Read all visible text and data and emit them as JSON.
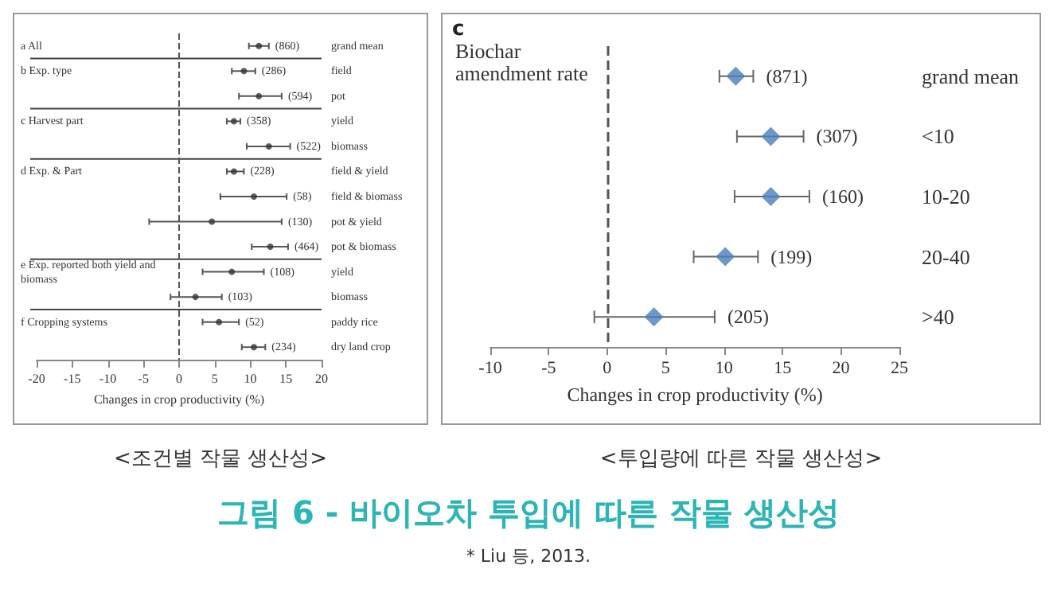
{
  "chart_data": [
    {
      "type": "scatter",
      "orientation": "horizontal",
      "xlabel": "Changes in crop productivity (%)",
      "marker": "circle",
      "color": "#333333",
      "categories": [
        "grand mean",
        "field",
        "pot",
        "yield",
        "biomass",
        "field & yield",
        "field & biomass",
        "pot & yield",
        "pot & biomass",
        "yield",
        "biomass",
        "paddy rice",
        "dry land crop"
      ],
      "values": [
        11.2,
        9.1,
        11.2,
        7.7,
        12.6,
        7.7,
        10.5,
        4.6,
        12.8,
        7.4,
        2.3,
        5.6,
        10.5
      ],
      "errors": [
        [
          9.8,
          12.6
        ],
        [
          7.4,
          10.7
        ],
        [
          8.4,
          14.4
        ],
        [
          6.7,
          8.6
        ],
        [
          9.5,
          15.6
        ],
        [
          6.7,
          9.1
        ],
        [
          5.8,
          15.1
        ],
        [
          -4.2,
          14.4
        ],
        [
          10.2,
          15.3
        ],
        [
          3.3,
          11.9
        ],
        [
          -1.2,
          6.0
        ],
        [
          3.3,
          8.4
        ],
        [
          8.8,
          12.1
        ]
      ],
      "xlim": [
        -20,
        20
      ],
      "xticks": [
        -20,
        -15,
        -10,
        -5,
        0,
        5,
        10,
        15,
        20
      ],
      "ref_lines": [
        {
          "axis": "x",
          "value": 0,
          "line_style": "dashed"
        }
      ],
      "y2_categories": [
        "a All",
        "b Exp. type",
        null,
        "c Harvest part",
        null,
        "d Exp. & Part",
        null,
        null,
        null,
        "e Exp. reported both yield and biomass",
        null,
        "f Cropping systems",
        null
      ],
      "annotations": [
        "<조건별 작물 생산성>",
        "(860)",
        "(286)",
        "(594)",
        "(358)",
        "(522)",
        "(228)",
        "(58)",
        "(130)",
        "(464)",
        "(108)",
        "(103)",
        "(52)",
        "(234)"
      ]
    },
    {
      "type": "scatter",
      "orientation": "horizontal",
      "title": "Biochar amendment rate",
      "xlabel": "Changes in crop productivity (%)",
      "marker": "diamond",
      "color": "#4a7ebb",
      "categories": [
        "grand mean",
        "<10",
        "10-20",
        "20-40",
        ">40"
      ],
      "values": [
        11.0,
        14.0,
        14.0,
        10.1,
        4.0
      ],
      "errors": [
        [
          9.6,
          12.5
        ],
        [
          11.1,
          16.8
        ],
        [
          10.9,
          17.3
        ],
        [
          7.4,
          12.9
        ],
        [
          -1.1,
          9.2
        ]
      ],
      "xlim": [
        -10,
        25
      ],
      "xticks": [
        -10,
        -5,
        0,
        5,
        10,
        15,
        20,
        25
      ],
      "ref_lines": [
        {
          "axis": "x",
          "value": 0,
          "line_style": "dashed"
        }
      ],
      "annotations": [
        "c",
        "<투입량에 따른 작물 생산성>",
        "그림 6 - 바이오차 투입에 따른 작물 생산성",
        "* Liu 등, 2013.",
        {
          "text": "(871)",
          "x": 12.5,
          "y": "grand mean"
        },
        {
          "text": "(307)",
          "x": 16.8,
          "y": "<10"
        },
        {
          "text": "(160)",
          "x": 17.3,
          "y": "10-20"
        },
        {
          "text": "(199)",
          "x": 12.9,
          "y": "20-40"
        },
        {
          "text": "(205)",
          "x": 9.2,
          "y": ">40"
        }
      ]
    }
  ]
}
